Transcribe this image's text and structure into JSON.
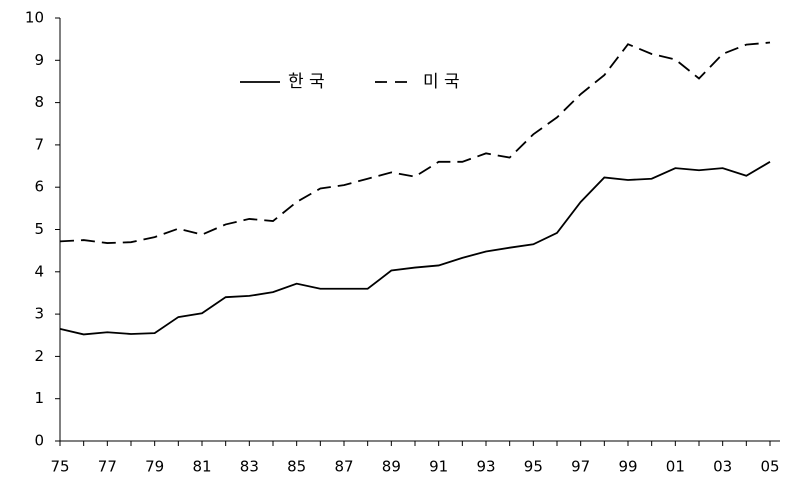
{
  "chart_data": {
    "type": "line",
    "categories": [
      "75",
      null,
      "77",
      null,
      "79",
      null,
      "81",
      null,
      "83",
      null,
      "85",
      null,
      "87",
      null,
      "89",
      null,
      "91",
      null,
      "93",
      null,
      "95",
      null,
      "97",
      null,
      "99",
      null,
      "01",
      null,
      "03",
      null,
      "05"
    ],
    "series": [
      {
        "name": "한 국",
        "color": "#000000",
        "style": "solid",
        "values": [
          2.65,
          2.52,
          2.57,
          2.53,
          2.55,
          2.93,
          3.02,
          3.4,
          3.43,
          3.52,
          3.72,
          3.6,
          3.6,
          3.6,
          4.03,
          4.1,
          4.15,
          4.33,
          4.48,
          4.57,
          4.65,
          4.92,
          5.65,
          6.23,
          6.17,
          6.2,
          6.45,
          6.4,
          6.45,
          6.27,
          6.6
        ]
      },
      {
        "name": "미 국",
        "color": "#000000",
        "style": "dashed",
        "values": [
          4.72,
          4.75,
          4.68,
          4.7,
          4.82,
          5.02,
          4.88,
          5.12,
          5.25,
          5.2,
          5.65,
          5.97,
          6.05,
          6.2,
          6.35,
          6.25,
          6.6,
          6.6,
          6.8,
          6.7,
          7.25,
          7.65,
          8.2,
          8.65,
          9.38,
          9.15,
          9.02,
          8.57,
          9.15,
          9.37,
          9.42
        ]
      }
    ],
    "ylim": [
      0,
      10
    ],
    "yticks": [
      0,
      1,
      2,
      3,
      4,
      5,
      6,
      7,
      8,
      9,
      10
    ],
    "grid": false,
    "legend": "upper center"
  }
}
